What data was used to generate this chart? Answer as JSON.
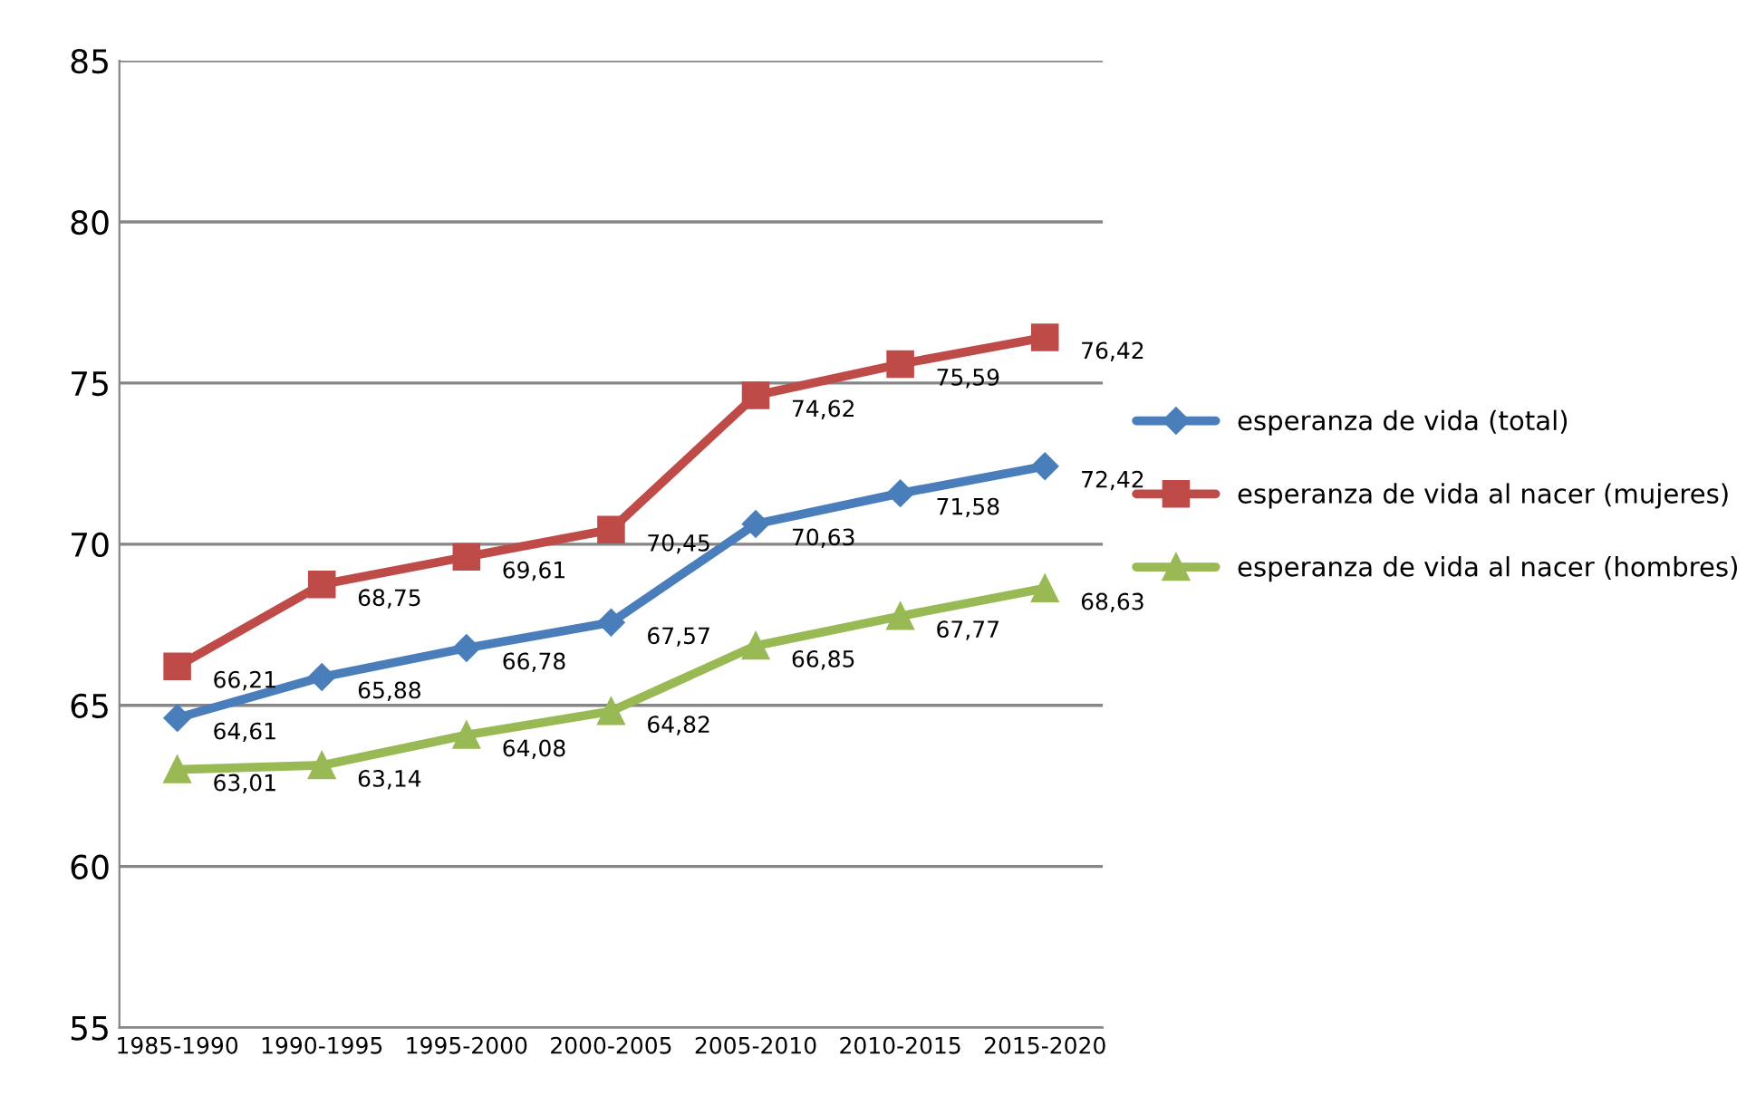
{
  "chart_data": {
    "type": "line",
    "categories": [
      "1985-1990",
      "1990-1995",
      "1995-2000",
      "2000-2005",
      "2005-2010",
      "2010-2015",
      "2015-2020"
    ],
    "series": [
      {
        "name": "esperanza de vida (total)",
        "color": "#4a7ebb",
        "marker": "diamond",
        "values": [
          64.61,
          65.88,
          66.78,
          67.57,
          70.63,
          71.58,
          72.42
        ],
        "value_labels": [
          "64,61",
          "65,88",
          "66,78",
          "67,57",
          "70,63",
          "71,58",
          "72,42"
        ]
      },
      {
        "name": "esperanza de vida al nacer (mujeres)",
        "color": "#be4b48",
        "marker": "square",
        "values": [
          66.21,
          68.75,
          69.61,
          70.45,
          74.62,
          75.59,
          76.42
        ],
        "value_labels": [
          "66,21",
          "68,75",
          "69,61",
          "70,45",
          "74,62",
          "75,59",
          "76,42"
        ]
      },
      {
        "name": "esperanza de vida al nacer (hombres)",
        "color": "#98b954",
        "marker": "triangle",
        "values": [
          63.01,
          63.14,
          64.08,
          64.82,
          66.85,
          67.77,
          68.63
        ],
        "value_labels": [
          "63,01",
          "63,14",
          "64,08",
          "64,82",
          "66,85",
          "67,77",
          "68,63"
        ]
      }
    ],
    "ylim": [
      55,
      85
    ],
    "yticks": [
      55,
      60,
      65,
      70,
      75,
      80,
      85
    ],
    "grid": "y",
    "legend": "right",
    "line_style": "solid"
  }
}
